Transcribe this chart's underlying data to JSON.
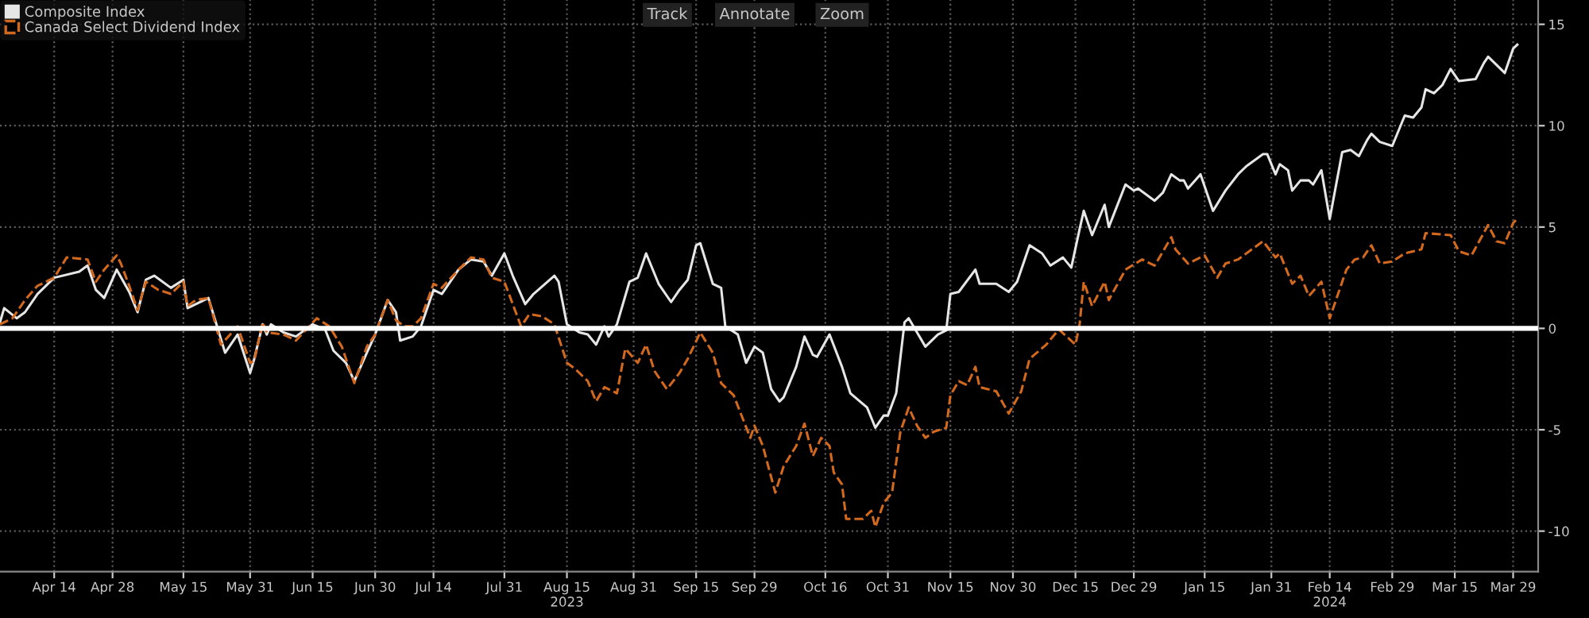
{
  "chart_data": {
    "type": "line",
    "xlim": [
      "2023-04-01",
      "2024-04-04"
    ],
    "xticks": [
      {
        "value": "2023-04-14",
        "label": "Apr 14"
      },
      {
        "value": "2023-04-28",
        "label": "Apr 28"
      },
      {
        "value": "2023-05-15",
        "label": "May 15"
      },
      {
        "value": "2023-05-31",
        "label": "May 31"
      },
      {
        "value": "2023-06-15",
        "label": "Jun 15"
      },
      {
        "value": "2023-06-30",
        "label": "Jun 30"
      },
      {
        "value": "2023-07-14",
        "label": "Jul 14"
      },
      {
        "value": "2023-07-31",
        "label": "Jul 31"
      },
      {
        "value": "2023-08-15",
        "label": "Aug 15\n2023"
      },
      {
        "value": "2023-08-31",
        "label": "Aug 31"
      },
      {
        "value": "2023-09-15",
        "label": "Sep 15"
      },
      {
        "value": "2023-09-29",
        "label": "Sep 29"
      },
      {
        "value": "2023-10-16",
        "label": "Oct 16"
      },
      {
        "value": "2023-10-31",
        "label": "Oct 31"
      },
      {
        "value": "2023-11-15",
        "label": "Nov 15"
      },
      {
        "value": "2023-11-30",
        "label": "Nov 30"
      },
      {
        "value": "2023-12-15",
        "label": "Dec 15"
      },
      {
        "value": "2023-12-29",
        "label": "Dec 29"
      },
      {
        "value": "2024-01-15",
        "label": "Jan 15"
      },
      {
        "value": "2024-01-31",
        "label": "Jan 31"
      },
      {
        "value": "2024-02-14",
        "label": "Feb 14\n2024"
      },
      {
        "value": "2024-02-29",
        "label": "Feb 29"
      },
      {
        "value": "2024-03-15",
        "label": "Mar 15"
      },
      {
        "value": "2024-03-29",
        "label": "Mar 29"
      }
    ],
    "ylim": [
      -12,
      16.2
    ],
    "yticks": [
      -10,
      -5,
      0,
      5,
      10,
      15
    ],
    "grid": true,
    "legend": "top left",
    "annotations": [
      "Track",
      "Annotate",
      "Zoom"
    ],
    "ref_lines": [
      {
        "axis": "y",
        "value": 0,
        "color": "#ffffff",
        "line_style": "solid"
      }
    ],
    "series": [
      {
        "name": "Composite Index",
        "color": "#e6e6e6",
        "line_style": "solid",
        "x": [
          "2023-04-01",
          "2023-04-02",
          "2023-04-05",
          "2023-04-07",
          "2023-04-10",
          "2023-04-14",
          "2023-04-20",
          "2023-04-22",
          "2023-04-24",
          "2023-04-26",
          "2023-04-29",
          "2023-05-02",
          "2023-05-04",
          "2023-05-06",
          "2023-05-08",
          "2023-05-12",
          "2023-05-15",
          "2023-05-16",
          "2023-05-21",
          "2023-05-25",
          "2023-05-28",
          "2023-05-31",
          "2023-06-01",
          "2023-06-03",
          "2023-06-04",
          "2023-06-05",
          "2023-06-08",
          "2023-06-11",
          "2023-06-15",
          "2023-06-18",
          "2023-06-20",
          "2023-06-23",
          "2023-06-25",
          "2023-06-28",
          "2023-06-30",
          "2023-07-03",
          "2023-07-05",
          "2023-07-06",
          "2023-07-09",
          "2023-07-11",
          "2023-07-14",
          "2023-07-16",
          "2023-07-20",
          "2023-07-23",
          "2023-07-26",
          "2023-07-28",
          "2023-07-31",
          "2023-08-02",
          "2023-08-05",
          "2023-08-07",
          "2023-08-12",
          "2023-08-13",
          "2023-08-15",
          "2023-08-18",
          "2023-08-20",
          "2023-08-22",
          "2023-08-24",
          "2023-08-25",
          "2023-08-27",
          "2023-08-30",
          "2023-09-01",
          "2023-09-03",
          "2023-09-06",
          "2023-09-09",
          "2023-09-11",
          "2023-09-13",
          "2023-09-15",
          "2023-09-16",
          "2023-09-19",
          "2023-09-21",
          "2023-09-22",
          "2023-09-25",
          "2023-09-27",
          "2023-09-29",
          "2023-10-01",
          "2023-10-03",
          "2023-10-05",
          "2023-10-06",
          "2023-10-09",
          "2023-10-11",
          "2023-10-13",
          "2023-10-14",
          "2023-10-17",
          "2023-10-20",
          "2023-10-22",
          "2023-10-26",
          "2023-10-28",
          "2023-10-30",
          "2023-10-31",
          "2023-11-02",
          "2023-11-04",
          "2023-11-05",
          "2023-11-07",
          "2023-11-09",
          "2023-11-12",
          "2023-11-14",
          "2023-11-15",
          "2023-11-17",
          "2023-11-21",
          "2023-11-22",
          "2023-11-26",
          "2023-11-29",
          "2023-12-01",
          "2023-12-04",
          "2023-12-07",
          "2023-12-09",
          "2023-12-12",
          "2023-12-14",
          "2023-12-16",
          "2023-12-17",
          "2023-12-19",
          "2023-12-22",
          "2023-12-23",
          "2023-12-27",
          "2023-12-29",
          "2023-12-30",
          "2024-01-03",
          "2024-01-05",
          "2024-01-07",
          "2024-01-09",
          "2024-01-10",
          "2024-01-11",
          "2024-01-14",
          "2024-01-17",
          "2024-01-20",
          "2024-01-23",
          "2024-01-25",
          "2024-01-29",
          "2024-01-30",
          "2024-02-01",
          "2024-02-02",
          "2024-02-04",
          "2024-02-05",
          "2024-02-07",
          "2024-02-09",
          "2024-02-10",
          "2024-02-12",
          "2024-02-14",
          "2024-02-17",
          "2024-02-19",
          "2024-02-21",
          "2024-02-23",
          "2024-02-24",
          "2024-02-26",
          "2024-02-29",
          "2024-03-01",
          "2024-03-03",
          "2024-03-05",
          "2024-03-07",
          "2024-03-08",
          "2024-03-10",
          "2024-03-12",
          "2024-03-14",
          "2024-03-16",
          "2024-03-20",
          "2024-03-22",
          "2024-03-23",
          "2024-03-25",
          "2024-03-27",
          "2024-03-29",
          "2024-03-30"
        ],
        "values": [
          0.3,
          1.0,
          0.5,
          0.8,
          1.7,
          2.5,
          2.8,
          3.1,
          1.9,
          1.5,
          2.9,
          1.8,
          0.8,
          2.4,
          2.6,
          2.0,
          2.4,
          1.0,
          1.5,
          -1.2,
          -0.3,
          -2.2,
          -1.5,
          0.2,
          -0.3,
          0.2,
          -0.2,
          -0.4,
          0.2,
          -0.05,
          -1.1,
          -1.7,
          -2.6,
          -1.2,
          -0.3,
          1.4,
          0.8,
          -0.6,
          -0.4,
          0.1,
          1.9,
          1.7,
          2.9,
          3.4,
          3.3,
          2.6,
          3.7,
          2.6,
          1.2,
          1.7,
          2.6,
          2.3,
          0.2,
          -0.2,
          -0.3,
          -0.8,
          0.1,
          -0.4,
          0.2,
          2.3,
          2.5,
          3.7,
          2.2,
          1.3,
          1.9,
          2.4,
          4.1,
          4.2,
          2.2,
          2.0,
          0.1,
          -0.3,
          -1.7,
          -0.9,
          -1.2,
          -3.0,
          -3.6,
          -3.4,
          -1.9,
          -0.4,
          -1.3,
          -1.4,
          -0.3,
          -1.9,
          -3.2,
          -3.9,
          -4.9,
          -4.3,
          -4.3,
          -3.2,
          0.3,
          0.5,
          -0.2,
          -0.9,
          -0.3,
          -0.1,
          1.7,
          1.8,
          2.9,
          2.2,
          2.2,
          1.8,
          2.3,
          4.1,
          3.7,
          3.1,
          3.5,
          3.0,
          4.9,
          5.8,
          4.6,
          6.1,
          5.0,
          7.1,
          6.8,
          6.9,
          6.3,
          6.7,
          7.6,
          7.3,
          7.3,
          6.9,
          7.6,
          5.8,
          6.8,
          7.6,
          8.0,
          8.6,
          8.6,
          7.6,
          8.1,
          7.8,
          6.8,
          7.3,
          7.3,
          7.1,
          7.8,
          5.4,
          8.7,
          8.8,
          8.5,
          9.3,
          9.6,
          9.2,
          9.0,
          9.5,
          10.5,
          10.4,
          10.9,
          11.8,
          11.6,
          12.0,
          12.8,
          12.2,
          12.3,
          13.1,
          13.4,
          13.0,
          12.6,
          13.8,
          14.0
        ]
      },
      {
        "name": "Canada Select Dividend Index",
        "color": "#d2691e",
        "line_style": "dashed",
        "x": [
          "2023-04-01",
          "2023-04-04",
          "2023-04-07",
          "2023-04-10",
          "2023-04-14",
          "2023-04-17",
          "2023-04-22",
          "2023-04-24",
          "2023-04-26",
          "2023-04-29",
          "2023-04-30",
          "2023-05-02",
          "2023-05-04",
          "2023-05-06",
          "2023-05-09",
          "2023-05-12",
          "2023-05-15",
          "2023-05-16",
          "2023-05-18",
          "2023-05-21",
          "2023-05-24",
          "2023-05-28",
          "2023-05-31",
          "2023-06-01",
          "2023-06-03",
          "2023-06-04",
          "2023-06-08",
          "2023-06-11",
          "2023-06-16",
          "2023-06-19",
          "2023-06-22",
          "2023-06-25",
          "2023-06-28",
          "2023-06-30",
          "2023-07-03",
          "2023-07-05",
          "2023-07-07",
          "2023-07-09",
          "2023-07-11",
          "2023-07-14",
          "2023-07-16",
          "2023-07-20",
          "2023-07-23",
          "2023-07-26",
          "2023-07-28",
          "2023-07-31",
          "2023-08-02",
          "2023-08-04",
          "2023-08-06",
          "2023-08-09",
          "2023-08-12",
          "2023-08-15",
          "2023-08-17",
          "2023-08-20",
          "2023-08-22",
          "2023-08-24",
          "2023-08-27",
          "2023-08-29",
          "2023-09-01",
          "2023-09-03",
          "2023-09-05",
          "2023-09-08",
          "2023-09-11",
          "2023-09-13",
          "2023-09-16",
          "2023-09-19",
          "2023-09-21",
          "2023-09-24",
          "2023-09-28",
          "2023-09-29",
          "2023-10-01",
          "2023-10-04",
          "2023-10-06",
          "2023-10-09",
          "2023-10-11",
          "2023-10-13",
          "2023-10-15",
          "2023-10-17",
          "2023-10-18",
          "2023-10-20",
          "2023-10-21",
          "2023-10-25",
          "2023-10-27",
          "2023-10-28",
          "2023-10-30",
          "2023-11-01",
          "2023-11-03",
          "2023-11-05",
          "2023-11-07",
          "2023-11-09",
          "2023-11-11",
          "2023-11-14",
          "2023-11-15",
          "2023-11-17",
          "2023-11-19",
          "2023-11-21",
          "2023-11-22",
          "2023-11-26",
          "2023-11-29",
          "2023-12-02",
          "2023-12-04",
          "2023-12-08",
          "2023-12-11",
          "2023-12-15",
          "2023-12-16",
          "2023-12-17",
          "2023-12-19",
          "2023-12-22",
          "2023-12-23",
          "2023-12-27",
          "2023-12-31",
          "2024-01-03",
          "2024-01-07",
          "2024-01-08",
          "2024-01-11",
          "2024-01-15",
          "2024-01-18",
          "2024-01-20",
          "2024-01-23",
          "2024-01-29",
          "2024-02-01",
          "2024-02-02",
          "2024-02-05",
          "2024-02-07",
          "2024-02-09",
          "2024-02-12",
          "2024-02-14",
          "2024-02-18",
          "2024-02-20",
          "2024-02-22",
          "2024-02-24",
          "2024-02-26",
          "2024-02-29",
          "2024-03-03",
          "2024-03-07",
          "2024-03-08",
          "2024-03-14",
          "2024-03-16",
          "2024-03-19",
          "2024-03-23",
          "2024-03-25",
          "2024-03-27",
          "2024-03-29",
          "2024-03-30"
        ],
        "values": [
          0.2,
          0.5,
          1.4,
          2.1,
          2.5,
          3.5,
          3.4,
          2.3,
          2.9,
          3.6,
          3.2,
          2.1,
          0.9,
          2.3,
          1.9,
          1.7,
          2.3,
          1.1,
          1.4,
          1.5,
          -0.8,
          0.1,
          -1.7,
          -1.6,
          0.3,
          -0.2,
          -0.3,
          -0.6,
          0.5,
          0.1,
          -0.9,
          -2.7,
          -0.9,
          -0.3,
          1.4,
          0.4,
          0.1,
          0.1,
          0.5,
          2.2,
          2.0,
          2.9,
          3.5,
          3.4,
          2.5,
          2.3,
          1.2,
          0.1,
          0.7,
          0.6,
          0.2,
          -1.7,
          -2.0,
          -2.6,
          -3.6,
          -2.9,
          -3.2,
          -1.0,
          -1.7,
          -0.8,
          -2.1,
          -3.0,
          -2.2,
          -1.5,
          -0.2,
          -1.2,
          -2.7,
          -3.3,
          -5.4,
          -4.8,
          -5.8,
          -8.1,
          -6.8,
          -5.8,
          -4.7,
          -6.3,
          -5.4,
          -5.8,
          -7.1,
          -7.7,
          -9.4,
          -9.4,
          -9.0,
          -9.8,
          -8.6,
          -8.1,
          -5.1,
          -3.9,
          -4.8,
          -5.4,
          -5.1,
          -4.9,
          -3.3,
          -2.6,
          -2.8,
          -1.9,
          -2.9,
          -3.1,
          -4.2,
          -3.1,
          -1.5,
          -0.8,
          -0.05,
          -0.8,
          0.2,
          2.3,
          1.1,
          2.3,
          1.4,
          2.9,
          3.4,
          3.1,
          4.5,
          3.9,
          3.2,
          3.6,
          2.5,
          3.2,
          3.4,
          4.3,
          3.5,
          3.7,
          2.2,
          2.6,
          1.6,
          2.3,
          0.5,
          2.9,
          3.4,
          3.5,
          4.1,
          3.2,
          3.3,
          3.7,
          3.9,
          4.7,
          4.6,
          3.8,
          3.6,
          5.1,
          4.3,
          4.2,
          5.2,
          5.4
        ]
      }
    ]
  }
}
